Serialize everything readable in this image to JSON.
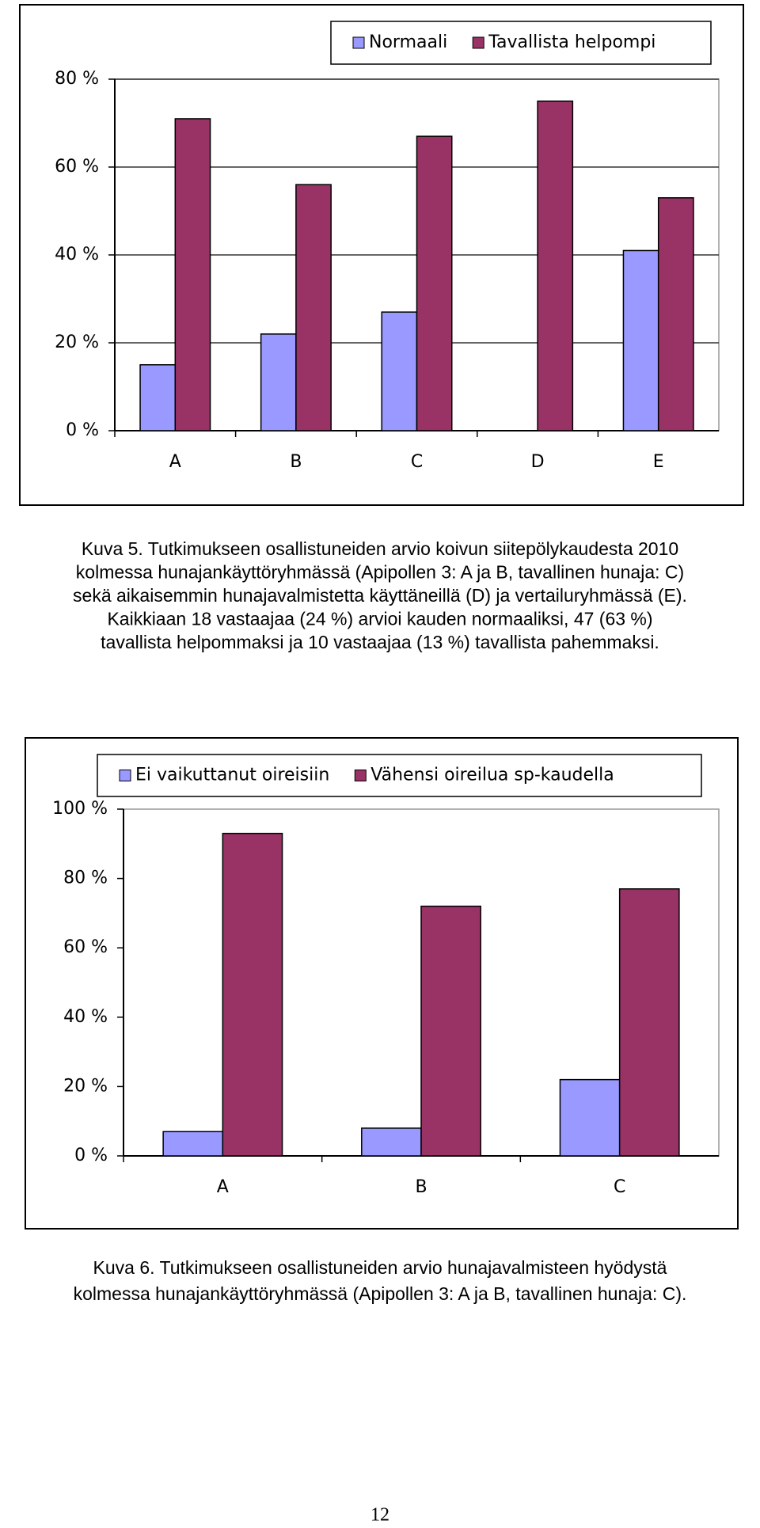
{
  "chart_data": [
    {
      "type": "bar",
      "categories": [
        "A",
        "B",
        "C",
        "D",
        "E"
      ],
      "series": [
        {
          "name": "Normaali",
          "color": "#9999ff",
          "values": [
            15,
            22,
            27,
            null,
            41
          ]
        },
        {
          "name": "Tavallista helpompi",
          "color": "#993366",
          "values": [
            71,
            56,
            67,
            75,
            53
          ]
        }
      ],
      "ylim": [
        0,
        80
      ],
      "yticks": [
        {
          "value": 0,
          "label": "0 %"
        },
        {
          "value": 20,
          "label": "20 %"
        },
        {
          "value": 40,
          "label": "40 %"
        },
        {
          "value": 60,
          "label": "60 %"
        },
        {
          "value": 80,
          "label": "80 %"
        }
      ],
      "grid": true,
      "legend": "top"
    },
    {
      "type": "bar",
      "categories": [
        "A",
        "B",
        "C"
      ],
      "series": [
        {
          "name": "Ei vaikuttanut oireisiin",
          "color": "#9999ff",
          "values": [
            7,
            8,
            22
          ]
        },
        {
          "name": "Vähensi oireilua sp-kaudella",
          "color": "#993366",
          "values": [
            93,
            72,
            77
          ]
        }
      ],
      "ylim": [
        0,
        100
      ],
      "yticks": [
        {
          "value": 0,
          "label": "0 %"
        },
        {
          "value": 20,
          "label": "20 %"
        },
        {
          "value": 40,
          "label": "40 %"
        },
        {
          "value": 60,
          "label": "60 %"
        },
        {
          "value": 80,
          "label": "80 %"
        },
        {
          "value": 100,
          "label": "100 %"
        }
      ],
      "grid": false,
      "legend": "top"
    }
  ],
  "captions": [
    [
      "Kuva 5. Tutkimukseen osallistuneiden arvio koivun siitepölykaudesta 2010",
      "kolmessa hunajankäyttöryhmässä (Apipollen 3: A ja B, tavallinen hunaja: C)",
      "sekä aikaisemmin hunajavalmistetta käyttäneillä (D) ja vertailuryhmässä (E).",
      "Kaikkiaan 18 vastaajaa (24 %) arvioi kauden normaaliksi, 47 (63 %)",
      "tavallista helpommaksi ja 10 vastaajaa (13 %) tavallista pahemmaksi."
    ],
    [
      "Kuva 6. Tutkimukseen osallistuneiden arvio hunajavalmisteen hyödystä",
      "kolmessa hunajankäyttöryhmässä (Apipollen 3: A ja B, tavallinen hunaja: C)."
    ]
  ],
  "page_number": "12"
}
